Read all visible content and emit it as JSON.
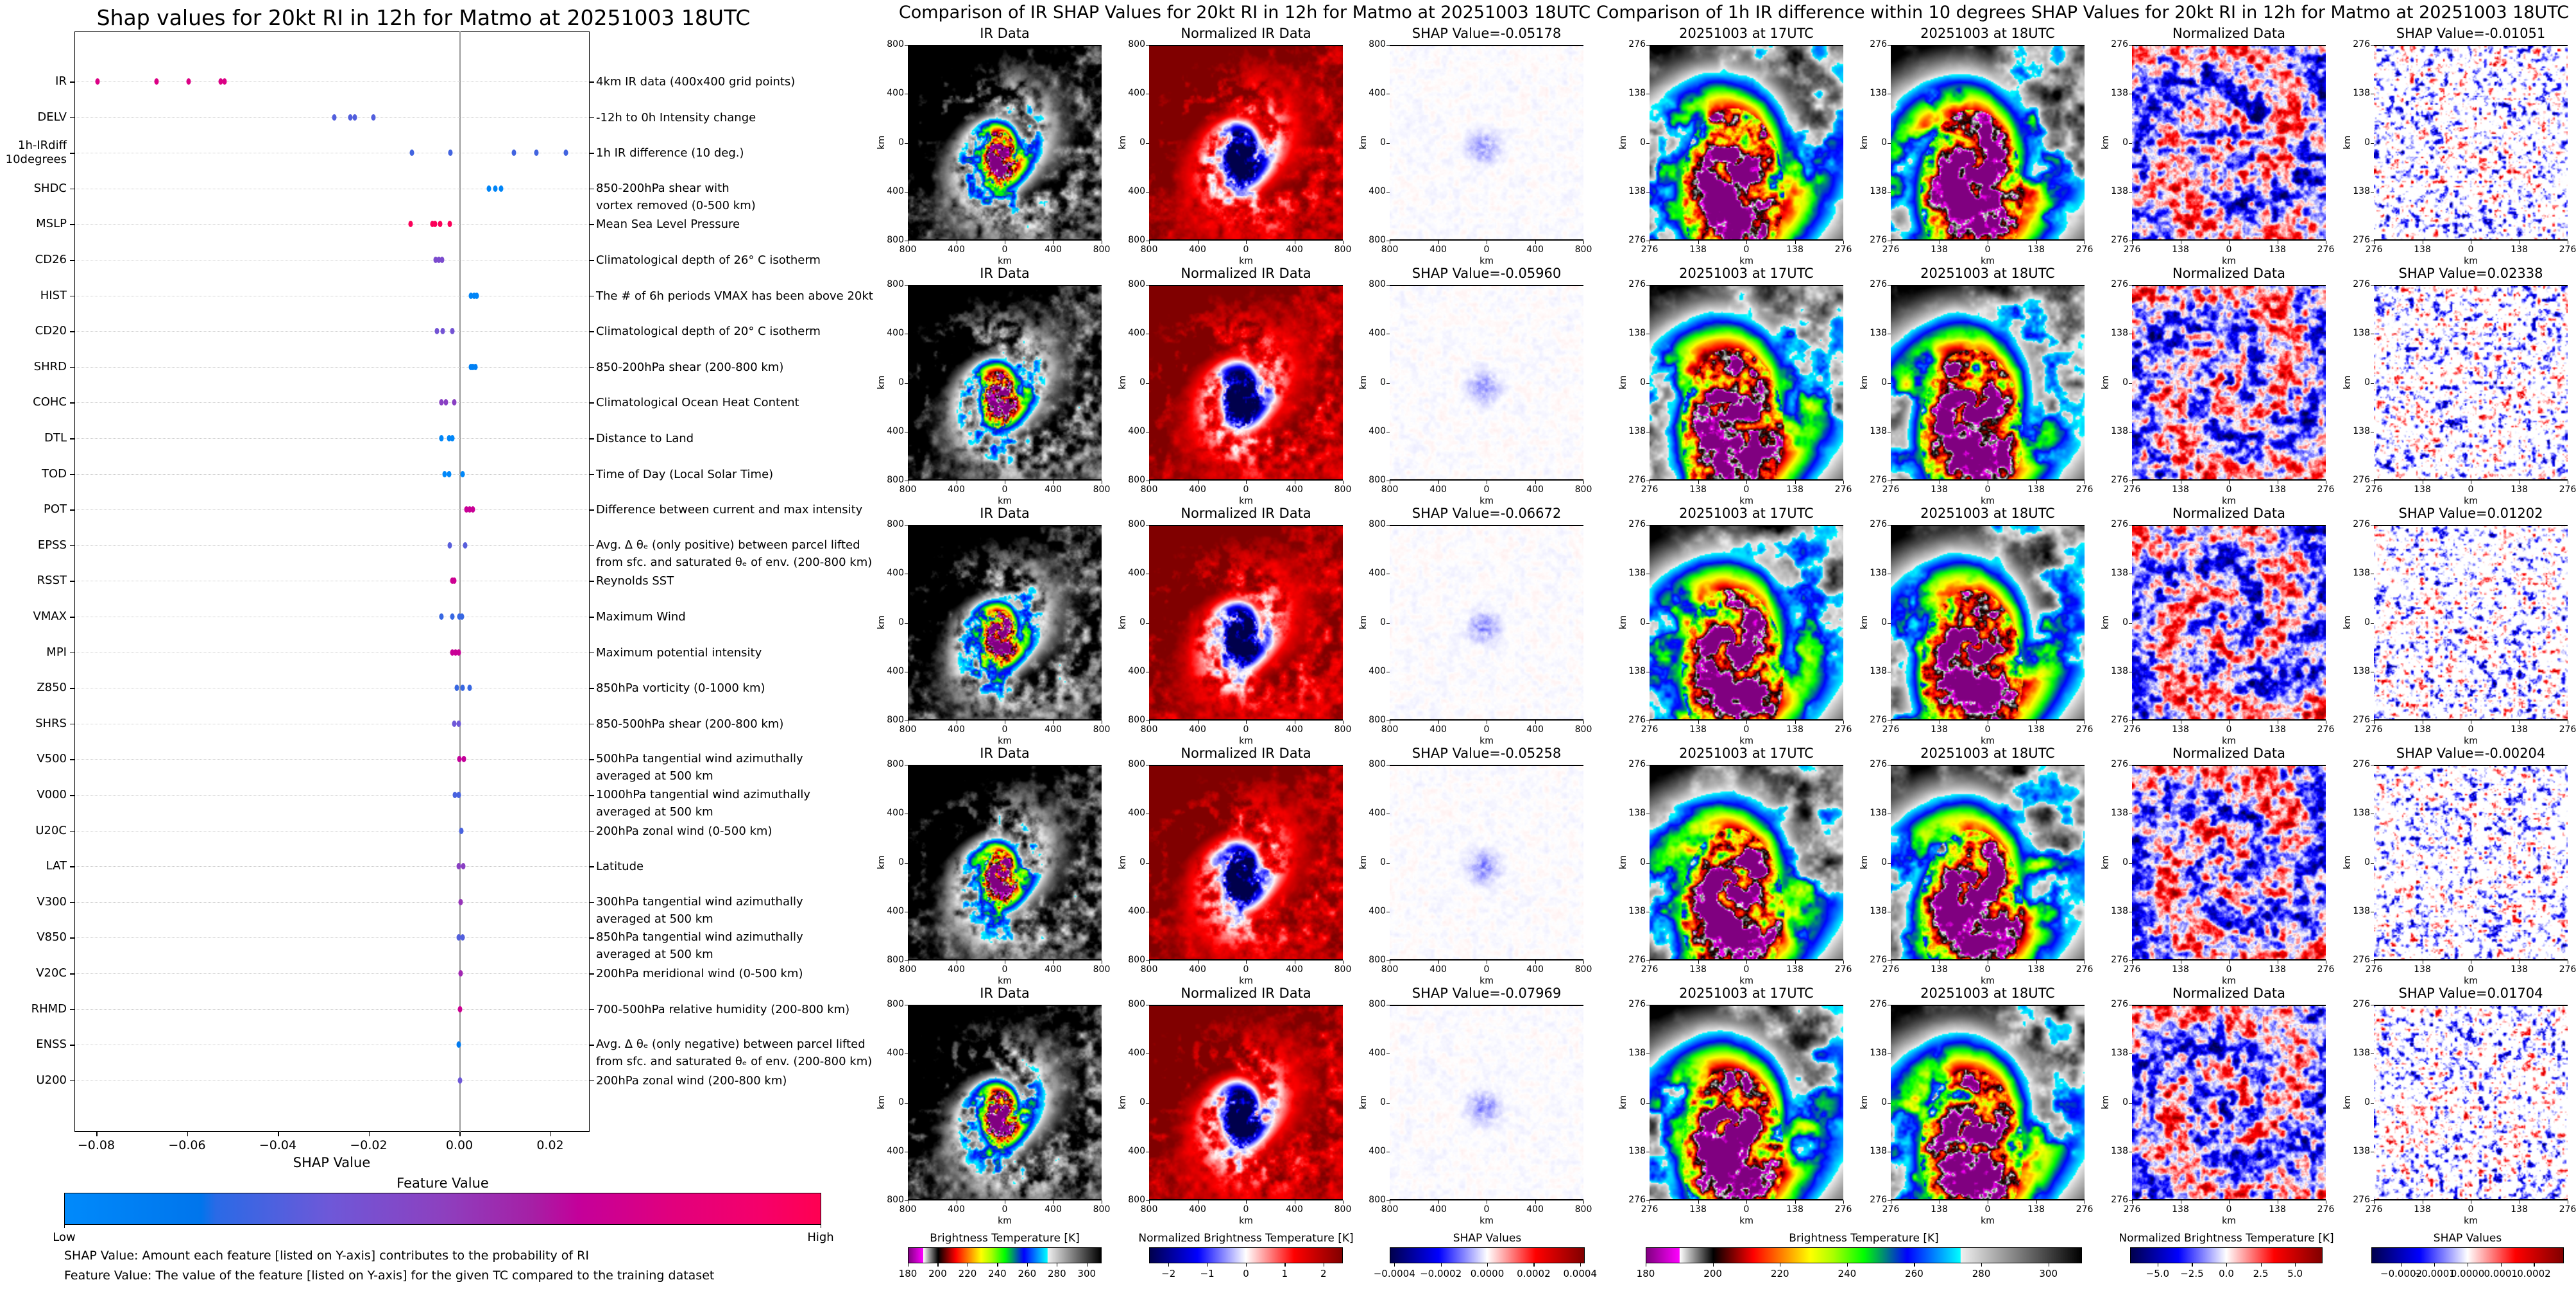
{
  "chart_data": {
    "type": "scatter",
    "title": "Shap values for 20kt RI in 12h for Matmo at 20251003 18UTC",
    "xlabel": "SHAP Value",
    "xlim": [
      -0.0848,
      0.0287
    ],
    "xticks": [
      -0.08,
      -0.06,
      -0.04,
      -0.02,
      0.0,
      0.02
    ],
    "xtick_labels": [
      "−0.08",
      "−0.06",
      "−0.04",
      "−0.02",
      "0.00",
      "0.02"
    ],
    "grid": "horizontal dotted",
    "features": [
      {
        "name": "IR",
        "description": "4km IR data (400x400 grid points)",
        "shap": [
          -0.0797,
          -0.0667,
          -0.0596,
          -0.0526,
          -0.0518
        ],
        "feature_value": 0.78
      },
      {
        "name": "DELV",
        "description": "-12h to 0h Intensity change",
        "shap": [
          -0.0276,
          -0.024,
          -0.023,
          -0.019
        ],
        "feature_value": 0.35
      },
      {
        "name": "1h-IRdiff\n10degrees",
        "description": "1h IR difference (10 deg.)",
        "shap": [
          -0.0105,
          -0.002,
          0.012,
          0.017,
          0.0234
        ],
        "feature_value": 0.32
      },
      {
        "name": "SHDC",
        "description": "850-200hPa shear with\nvortex removed (0-500 km)",
        "shap": [
          0.0065,
          0.0079,
          0.0092
        ],
        "feature_value": 0.05
      },
      {
        "name": "MSLP",
        "description": "Mean Sea Level Pressure",
        "shap": [
          -0.0108,
          -0.0059,
          -0.0054,
          -0.0042,
          -0.0021
        ],
        "feature_value": 0.97
      },
      {
        "name": "CD26",
        "description": "Climatological depth of 26° C isotherm",
        "shap": [
          -0.0052,
          -0.0045,
          -0.0038
        ],
        "feature_value": 0.45
      },
      {
        "name": "HIST",
        "description": "The # of 6h periods VMAX has been above 20kt",
        "shap": [
          0.0025,
          0.0032,
          0.0038
        ],
        "feature_value": 0.05
      },
      {
        "name": "CD20",
        "description": "Climatological depth of 20° C isotherm",
        "shap": [
          -0.005,
          -0.0037,
          -0.0016
        ],
        "feature_value": 0.42
      },
      {
        "name": "SHRD",
        "description": "850-200hPa shear (200-800 km)",
        "shap": [
          0.0025,
          0.003,
          0.0035
        ],
        "feature_value": 0.1
      },
      {
        "name": "COHC",
        "description": "Climatological Ocean Heat Content",
        "shap": [
          -0.004,
          -0.0029,
          -0.0011
        ],
        "feature_value": 0.5
      },
      {
        "name": "DTL",
        "description": "Distance to Land",
        "shap": [
          -0.0039,
          -0.0023,
          -0.0016
        ],
        "feature_value": 0.04
      },
      {
        "name": "TOD",
        "description": "Time of Day (Local Solar Time)",
        "shap": [
          -0.0033,
          -0.0023,
          0.0007
        ],
        "feature_value": 0.03
      },
      {
        "name": "POT",
        "description": "Difference between current and max intensity",
        "shap": [
          0.0015,
          0.0022,
          0.003
        ],
        "feature_value": 0.7
      },
      {
        "name": "EPSS",
        "description": "Avg. Δ θₑ (only positive) between parcel lifted\nfrom sfc. and saturated θₑ of env. (200-800 km)",
        "shap": [
          -0.0021,
          0.0013
        ],
        "feature_value": 0.36
      },
      {
        "name": "RSST",
        "description": "Reynolds SST",
        "shap": [
          -0.0016,
          -0.0011
        ],
        "feature_value": 0.72
      },
      {
        "name": "VMAX",
        "description": "Maximum Wind",
        "shap": [
          -0.0039,
          -0.0016,
          0.0,
          0.0006
        ],
        "feature_value": 0.3
      },
      {
        "name": "MPI",
        "description": "Maximum potential intensity",
        "shap": [
          -0.0016,
          -0.0009,
          -0.0002
        ],
        "feature_value": 0.7
      },
      {
        "name": "Z850",
        "description": "850hPa vorticity (0-1000 km)",
        "shap": [
          -0.0005,
          0.0007,
          0.0023
        ],
        "feature_value": 0.3
      },
      {
        "name": "SHRS",
        "description": "850-500hPa shear (200-800 km)",
        "shap": [
          -0.0012,
          -0.0002
        ],
        "feature_value": 0.4
      },
      {
        "name": "V500",
        "description": "500hPa tangential wind azimuthally\naveraged at 500 km",
        "shap": [
          0.0,
          0.001
        ],
        "feature_value": 0.68
      },
      {
        "name": "V000",
        "description": "1000hPa tangential wind azimuthally\naveraged at 500 km",
        "shap": [
          -0.001,
          -0.0001
        ],
        "feature_value": 0.33
      },
      {
        "name": "U20C",
        "description": "200hPa zonal wind (0-500 km)",
        "shap": [
          0.0004
        ],
        "feature_value": 0.33
      },
      {
        "name": "LAT",
        "description": "Latitude",
        "shap": [
          -0.0001,
          0.0009
        ],
        "feature_value": 0.5
      },
      {
        "name": "V300",
        "description": "300hPa tangential wind azimuthally\naveraged at 500 km",
        "shap": [
          0.0003
        ],
        "feature_value": 0.55
      },
      {
        "name": "V850",
        "description": "850hPa tangential wind azimuthally\naveraged at 500 km",
        "shap": [
          -0.0001,
          0.0007
        ],
        "feature_value": 0.35
      },
      {
        "name": "V20C",
        "description": "200hPa meridional wind (0-500 km)",
        "shap": [
          0.0003
        ],
        "feature_value": 0.58
      },
      {
        "name": "RHMD",
        "description": "700-500hPa relative humidity (200-800 km)",
        "shap": [
          0.0002
        ],
        "feature_value": 0.72
      },
      {
        "name": "ENSS",
        "description": "Avg. Δ θₑ (only negative) between parcel lifted\nfrom sfc. and saturated θₑ of env. (200-800 km)",
        "shap": [
          -0.0001
        ],
        "feature_value": 0.15
      },
      {
        "name": "U200",
        "description": "200hPa zonal wind (200-800 km)",
        "shap": [
          0.0001
        ],
        "feature_value": 0.4
      }
    ],
    "colorbar": {
      "title": "Feature Value",
      "low": "Low",
      "high": "High",
      "colors": [
        "#008afb",
        "#ff0052"
      ]
    },
    "notes": [
      "SHAP Value: Amount each feature [listed on Y-axis] contributes to the probability of RI",
      "Feature Value: The value of the feature [listed on Y-axis] for the given TC compared to the training dataset"
    ]
  },
  "ir_comparison": {
    "title": "Comparison of IR SHAP Values for 20kt RI in 12h for Matmo at 20251003 18UTC",
    "axis_label": "km",
    "xticks": [
      "800",
      "400",
      "0",
      "400",
      "800"
    ],
    "yticks": [
      "800",
      "400",
      "0",
      "400",
      "800"
    ],
    "rows": [
      {
        "titles": [
          "IR Data",
          "Normalized IR Data",
          "SHAP Value=-0.05178"
        ],
        "shap_value": -0.05178
      },
      {
        "titles": [
          "IR Data",
          "Normalized IR Data",
          "SHAP Value=-0.05960"
        ],
        "shap_value": -0.0596
      },
      {
        "titles": [
          "IR Data",
          "Normalized IR Data",
          "SHAP Value=-0.06672"
        ],
        "shap_value": -0.06672
      },
      {
        "titles": [
          "IR Data",
          "Normalized IR Data",
          "SHAP Value=-0.05258"
        ],
        "shap_value": -0.05258
      },
      {
        "titles": [
          "IR Data",
          "Normalized IR Data",
          "SHAP Value=-0.07969"
        ],
        "shap_value": -0.07969
      }
    ],
    "colorbars": [
      {
        "title": "Brightness Temperature [K]",
        "range": [
          180,
          310
        ],
        "ticks": [
          180,
          200,
          220,
          240,
          260,
          280,
          300
        ],
        "tick_labels": [
          "180",
          "200",
          "220",
          "240",
          "260",
          "280",
          "300"
        ],
        "colormap": "ir-enhanced"
      },
      {
        "title": "Normalized Brightness Temperature [K]",
        "range": [
          -2.5,
          2.5
        ],
        "ticks": [
          -2,
          -1,
          0,
          1,
          2
        ],
        "tick_labels": [
          "−2",
          "−1",
          "0",
          "1",
          "2"
        ],
        "colormap": "seismic"
      },
      {
        "title": "SHAP Values",
        "range": [
          -0.00042,
          0.00042
        ],
        "ticks": [
          -0.0004,
          -0.0002,
          0,
          0.0002,
          0.0004
        ],
        "tick_labels": [
          "−0.0004",
          "−0.0002",
          "0.0000",
          "0.0002",
          "0.0004"
        ],
        "colormap": "seismic"
      }
    ]
  },
  "diff_comparison": {
    "title": "Comparison of 1h IR difference within 10 degrees SHAP Values for 20kt RI in 12h for Matmo at 20251003 18UTC",
    "axis_label": "km",
    "xticks": [
      "276",
      "138",
      "0",
      "138",
      "276"
    ],
    "yticks": [
      "276",
      "138",
      "0",
      "138",
      "276"
    ],
    "rows": [
      {
        "titles": [
          "20251003 at 17UTC",
          "20251003 at 18UTC",
          "Normalized Data",
          "SHAP Value=-0.01051"
        ],
        "shap_value": -0.01051
      },
      {
        "titles": [
          "20251003 at 17UTC",
          "20251003 at 18UTC",
          "Normalized Data",
          "SHAP Value=0.02338"
        ],
        "shap_value": 0.02338
      },
      {
        "titles": [
          "20251003 at 17UTC",
          "20251003 at 18UTC",
          "Normalized Data",
          "SHAP Value=0.01202"
        ],
        "shap_value": 0.01202
      },
      {
        "titles": [
          "20251003 at 17UTC",
          "20251003 at 18UTC",
          "Normalized Data",
          "SHAP Value=-0.00204"
        ],
        "shap_value": -0.00204
      },
      {
        "titles": [
          "20251003 at 17UTC",
          "20251003 at 18UTC",
          "Normalized Data",
          "SHAP Value=0.01704"
        ],
        "shap_value": 0.01704
      }
    ],
    "colorbars": [
      {
        "title": "Brightness Temperature [K]",
        "range": [
          180,
          310
        ],
        "ticks": [
          180,
          200,
          220,
          240,
          260,
          280,
          300
        ],
        "tick_labels": [
          "180",
          "200",
          "220",
          "240",
          "260",
          "280",
          "300"
        ],
        "colormap": "ir-enhanced"
      },
      {
        "title": "Normalized Brightness Temperature [K]",
        "range": [
          -7,
          7
        ],
        "ticks": [
          -5,
          -2.5,
          0,
          2.5,
          5
        ],
        "tick_labels": [
          "−5.0",
          "−2.5",
          "0.0",
          "2.5",
          "5.0"
        ],
        "colormap": "seismic"
      },
      {
        "title": "SHAP Values",
        "range": [
          -0.00029,
          0.00029
        ],
        "ticks": [
          -0.0002,
          -0.0001,
          0,
          0.0001,
          0.0002
        ],
        "tick_labels": [
          "−0.0002",
          "−0.0001",
          "0.0000",
          "0.0001",
          "0.0002"
        ],
        "colormap": "seismic"
      }
    ]
  }
}
